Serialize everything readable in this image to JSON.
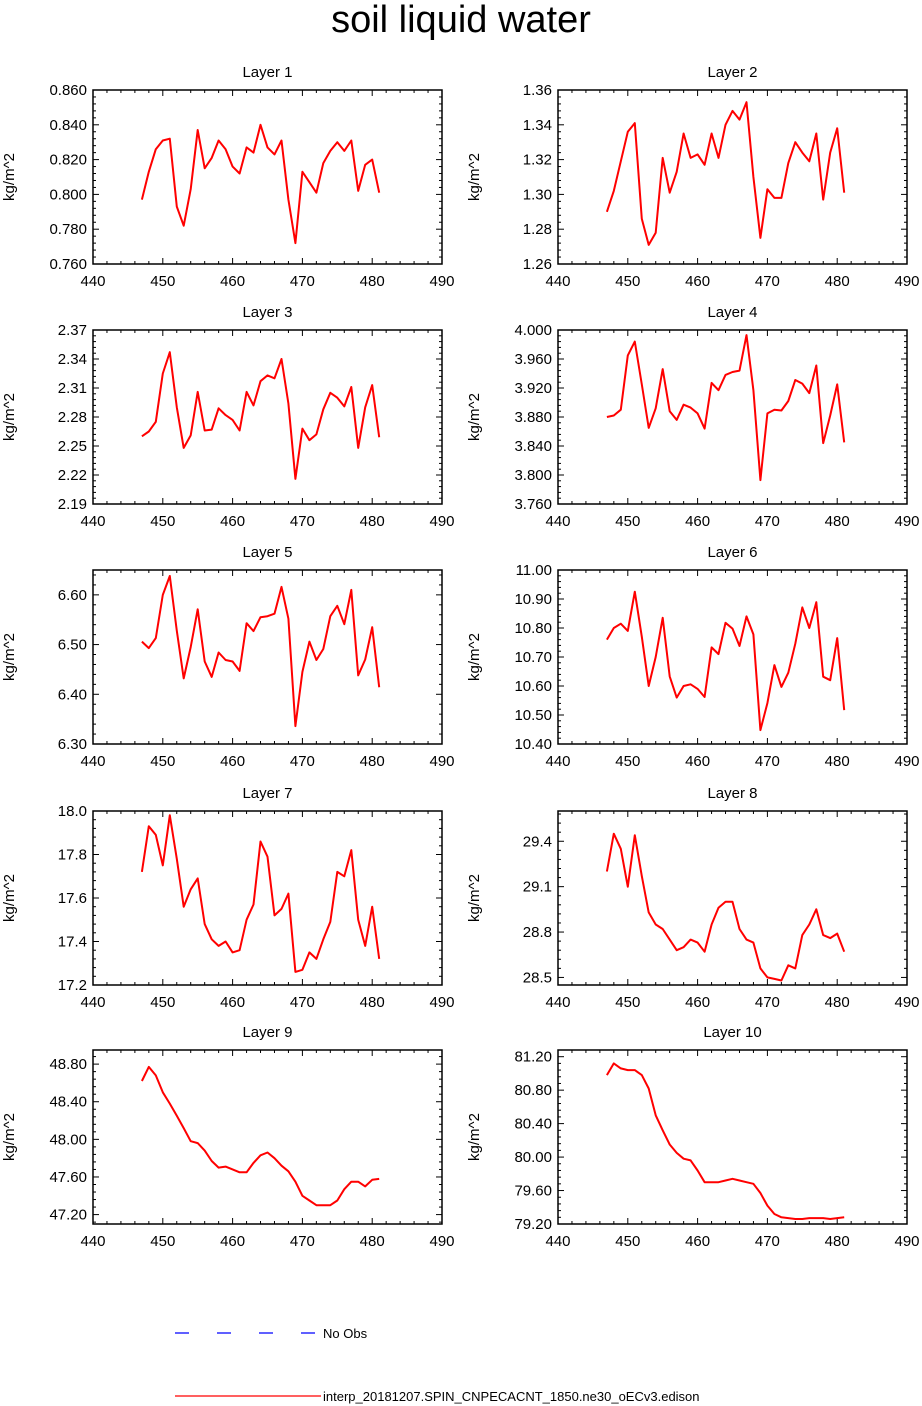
{
  "title": "soil liquid water",
  "legend": {
    "obs_label": "No Obs",
    "obs_color": "#0000ff",
    "model_label": "interp_20181207.SPIN_CNPECACNT_1850.ne30_oECv3.edison",
    "model_color": "#ff0000"
  },
  "chart_data": [
    {
      "type": "line",
      "title": "Layer 1",
      "ylabel": "kg/m^2",
      "xlim": [
        440,
        490
      ],
      "xticks": [
        "440",
        "450",
        "460",
        "470",
        "480",
        "490"
      ],
      "ylim": [
        0.76,
        0.86
      ],
      "yticks": [
        "0.760",
        "0.780",
        "0.800",
        "0.820",
        "0.840",
        "0.860"
      ],
      "x": [
        447,
        448,
        449,
        450,
        451,
        452,
        453,
        454,
        455,
        456,
        457,
        458,
        459,
        460,
        461,
        462,
        463,
        464,
        465,
        466,
        467,
        468,
        469,
        470,
        471,
        472,
        473,
        474,
        475,
        476,
        477,
        478,
        479,
        480,
        481
      ],
      "series": [
        {
          "name": "interp_20181207.SPIN_CNPECACNT_1850.ne30_oECv3.edison",
          "values": [
            0.797,
            0.813,
            0.826,
            0.831,
            0.832,
            0.793,
            0.782,
            0.803,
            0.837,
            0.815,
            0.821,
            0.831,
            0.826,
            0.816,
            0.812,
            0.827,
            0.824,
            0.84,
            0.827,
            0.823,
            0.831,
            0.797,
            0.772,
            0.813,
            0.807,
            0.801,
            0.818,
            0.825,
            0.83,
            0.825,
            0.831,
            0.802,
            0.817,
            0.82,
            0.801
          ]
        }
      ]
    },
    {
      "type": "line",
      "title": "Layer 2",
      "ylabel": "kg/m^2",
      "xlim": [
        440,
        490
      ],
      "xticks": [
        "440",
        "450",
        "460",
        "470",
        "480",
        "490"
      ],
      "ylim": [
        1.26,
        1.36
      ],
      "yticks": [
        "1.26",
        "1.28",
        "1.30",
        "1.32",
        "1.34",
        "1.36"
      ],
      "x": [
        447,
        448,
        449,
        450,
        451,
        452,
        453,
        454,
        455,
        456,
        457,
        458,
        459,
        460,
        461,
        462,
        463,
        464,
        465,
        466,
        467,
        468,
        469,
        470,
        471,
        472,
        473,
        474,
        475,
        476,
        477,
        478,
        479,
        480,
        481
      ],
      "series": [
        {
          "name": "interp_20181207.SPIN_CNPECACNT_1850.ne30_oECv3.edison",
          "values": [
            1.29,
            1.302,
            1.319,
            1.336,
            1.341,
            1.286,
            1.271,
            1.278,
            1.321,
            1.301,
            1.313,
            1.335,
            1.321,
            1.323,
            1.317,
            1.335,
            1.321,
            1.34,
            1.348,
            1.343,
            1.353,
            1.31,
            1.275,
            1.303,
            1.298,
            1.298,
            1.318,
            1.33,
            1.324,
            1.319,
            1.335,
            1.297,
            1.324,
            1.338,
            1.301
          ]
        }
      ]
    },
    {
      "type": "line",
      "title": "Layer 3",
      "ylabel": "kg/m^2",
      "xlim": [
        440,
        490
      ],
      "xticks": [
        "440",
        "450",
        "460",
        "470",
        "480",
        "490"
      ],
      "ylim": [
        2.19,
        2.37
      ],
      "yticks": [
        "2.19",
        "2.22",
        "2.25",
        "2.28",
        "2.31",
        "2.34",
        "2.37"
      ],
      "x": [
        447,
        448,
        449,
        450,
        451,
        452,
        453,
        454,
        455,
        456,
        457,
        458,
        459,
        460,
        461,
        462,
        463,
        464,
        465,
        466,
        467,
        468,
        469,
        470,
        471,
        472,
        473,
        474,
        475,
        476,
        477,
        478,
        479,
        480,
        481
      ],
      "series": [
        {
          "name": "interp_20181207.SPIN_CNPECACNT_1850.ne30_oECv3.edison",
          "values": [
            2.26,
            2.265,
            2.275,
            2.325,
            2.347,
            2.29,
            2.248,
            2.261,
            2.306,
            2.266,
            2.267,
            2.289,
            2.282,
            2.277,
            2.266,
            2.306,
            2.292,
            2.317,
            2.323,
            2.32,
            2.34,
            2.294,
            2.216,
            2.268,
            2.256,
            2.262,
            2.288,
            2.305,
            2.3,
            2.291,
            2.311,
            2.248,
            2.29,
            2.313,
            2.259
          ]
        }
      ]
    },
    {
      "type": "line",
      "title": "Layer 4",
      "ylabel": "kg/m^2",
      "xlim": [
        440,
        490
      ],
      "xticks": [
        "440",
        "450",
        "460",
        "470",
        "480",
        "490"
      ],
      "ylim": [
        3.76,
        4.0
      ],
      "yticks": [
        "3.760",
        "3.800",
        "3.840",
        "3.880",
        "3.920",
        "3.960",
        "4.000"
      ],
      "x": [
        447,
        448,
        449,
        450,
        451,
        452,
        453,
        454,
        455,
        456,
        457,
        458,
        459,
        460,
        461,
        462,
        463,
        464,
        465,
        466,
        467,
        468,
        469,
        470,
        471,
        472,
        473,
        474,
        475,
        476,
        477,
        478,
        479,
        480,
        481
      ],
      "series": [
        {
          "name": "interp_20181207.SPIN_CNPECACNT_1850.ne30_oECv3.edison",
          "values": [
            3.88,
            3.882,
            3.89,
            3.965,
            3.984,
            3.925,
            3.865,
            3.892,
            3.946,
            3.888,
            3.876,
            3.897,
            3.893,
            3.885,
            3.864,
            3.927,
            3.917,
            3.938,
            3.942,
            3.944,
            3.993,
            3.917,
            3.793,
            3.885,
            3.89,
            3.889,
            3.902,
            3.931,
            3.926,
            3.913,
            3.951,
            3.844,
            3.882,
            3.925,
            3.845
          ]
        }
      ]
    },
    {
      "type": "line",
      "title": "Layer 5",
      "ylabel": "kg/m^2",
      "xlim": [
        440,
        490
      ],
      "xticks": [
        "440",
        "450",
        "460",
        "470",
        "480",
        "490"
      ],
      "ylim": [
        6.3,
        6.65
      ],
      "yticks": [
        "6.30",
        "6.40",
        "6.50",
        "6.60"
      ],
      "x": [
        447,
        448,
        449,
        450,
        451,
        452,
        453,
        454,
        455,
        456,
        457,
        458,
        459,
        460,
        461,
        462,
        463,
        464,
        465,
        466,
        467,
        468,
        469,
        470,
        471,
        472,
        473,
        474,
        475,
        476,
        477,
        478,
        479,
        480,
        481
      ],
      "series": [
        {
          "name": "interp_20181207.SPIN_CNPECACNT_1850.ne30_oECv3.edison",
          "values": [
            6.506,
            6.493,
            6.513,
            6.6,
            6.638,
            6.528,
            6.432,
            6.495,
            6.571,
            6.466,
            6.435,
            6.484,
            6.469,
            6.466,
            6.447,
            6.543,
            6.527,
            6.555,
            6.557,
            6.562,
            6.616,
            6.552,
            6.336,
            6.445,
            6.506,
            6.469,
            6.491,
            6.557,
            6.578,
            6.541,
            6.61,
            6.438,
            6.47,
            6.535,
            6.414
          ]
        }
      ]
    },
    {
      "type": "line",
      "title": "Layer 6",
      "ylabel": "kg/m^2",
      "xlim": [
        440,
        490
      ],
      "xticks": [
        "440",
        "450",
        "460",
        "470",
        "480",
        "490"
      ],
      "ylim": [
        10.4,
        11.0
      ],
      "yticks": [
        "10.40",
        "10.50",
        "10.60",
        "10.70",
        "10.80",
        "10.90",
        "11.00"
      ],
      "x": [
        447,
        448,
        449,
        450,
        451,
        452,
        453,
        454,
        455,
        456,
        457,
        458,
        459,
        460,
        461,
        462,
        463,
        464,
        465,
        466,
        467,
        468,
        469,
        470,
        471,
        472,
        473,
        474,
        475,
        476,
        477,
        478,
        479,
        480,
        481
      ],
      "series": [
        {
          "name": "interp_20181207.SPIN_CNPECACNT_1850.ne30_oECv3.edison",
          "values": [
            10.76,
            10.8,
            10.815,
            10.79,
            10.925,
            10.77,
            10.6,
            10.7,
            10.835,
            10.633,
            10.56,
            10.6,
            10.606,
            10.59,
            10.562,
            10.733,
            10.71,
            10.818,
            10.798,
            10.738,
            10.84,
            10.778,
            10.448,
            10.541,
            10.672,
            10.597,
            10.646,
            10.746,
            10.871,
            10.8,
            10.889,
            10.632,
            10.62,
            10.765,
            10.517
          ]
        }
      ]
    },
    {
      "type": "line",
      "title": "Layer 7",
      "ylabel": "kg/m^2",
      "xlim": [
        440,
        490
      ],
      "xticks": [
        "440",
        "450",
        "460",
        "470",
        "480",
        "490"
      ],
      "ylim": [
        17.2,
        18.0
      ],
      "yticks": [
        "17.2",
        "17.4",
        "17.6",
        "17.8",
        "18.0"
      ],
      "x": [
        447,
        448,
        449,
        450,
        451,
        452,
        453,
        454,
        455,
        456,
        457,
        458,
        459,
        460,
        461,
        462,
        463,
        464,
        465,
        466,
        467,
        468,
        469,
        470,
        471,
        472,
        473,
        474,
        475,
        476,
        477,
        478,
        479,
        480,
        481
      ],
      "series": [
        {
          "name": "interp_20181207.SPIN_CNPECACNT_1850.ne30_oECv3.edison",
          "values": [
            17.72,
            17.93,
            17.89,
            17.75,
            17.98,
            17.78,
            17.56,
            17.64,
            17.69,
            17.48,
            17.41,
            17.38,
            17.4,
            17.35,
            17.36,
            17.5,
            17.57,
            17.86,
            17.79,
            17.52,
            17.55,
            17.62,
            17.26,
            17.27,
            17.35,
            17.32,
            17.41,
            17.49,
            17.72,
            17.7,
            17.82,
            17.5,
            17.38,
            17.56,
            17.32
          ]
        }
      ]
    },
    {
      "type": "line",
      "title": "Layer 8",
      "ylabel": "kg/m^2",
      "xlim": [
        440,
        490
      ],
      "xticks": [
        "440",
        "450",
        "460",
        "470",
        "480",
        "490"
      ],
      "ylim": [
        28.45,
        29.6
      ],
      "yticks": [
        "28.5",
        "28.8",
        "29.1",
        "29.4"
      ],
      "x": [
        447,
        448,
        449,
        450,
        451,
        452,
        453,
        454,
        455,
        456,
        457,
        458,
        459,
        460,
        461,
        462,
        463,
        464,
        465,
        466,
        467,
        468,
        469,
        470,
        471,
        472,
        473,
        474,
        475,
        476,
        477,
        478,
        479,
        480,
        481
      ],
      "series": [
        {
          "name": "interp_20181207.SPIN_CNPECACNT_1850.ne30_oECv3.edison",
          "values": [
            29.2,
            29.45,
            29.35,
            29.1,
            29.44,
            29.17,
            28.93,
            28.85,
            28.82,
            28.75,
            28.68,
            28.7,
            28.75,
            28.73,
            28.67,
            28.85,
            28.96,
            29.0,
            29.0,
            28.82,
            28.75,
            28.73,
            28.56,
            28.5,
            28.49,
            28.48,
            28.58,
            28.56,
            28.78,
            28.85,
            28.95,
            28.78,
            28.76,
            28.79,
            28.67
          ]
        }
      ]
    },
    {
      "type": "line",
      "title": "Layer 9",
      "ylabel": "kg/m^2",
      "xlim": [
        440,
        490
      ],
      "xticks": [
        "440",
        "450",
        "460",
        "470",
        "480",
        "490"
      ],
      "ylim": [
        47.1,
        48.95
      ],
      "yticks": [
        "47.20",
        "47.60",
        "48.00",
        "48.40",
        "48.80"
      ],
      "x": [
        447,
        448,
        449,
        450,
        451,
        452,
        453,
        454,
        455,
        456,
        457,
        458,
        459,
        460,
        461,
        462,
        463,
        464,
        465,
        466,
        467,
        468,
        469,
        470,
        471,
        472,
        473,
        474,
        475,
        476,
        477,
        478,
        479,
        480,
        481
      ],
      "series": [
        {
          "name": "interp_20181207.SPIN_CNPECACNT_1850.ne30_oECv3.edison",
          "values": [
            48.62,
            48.77,
            48.68,
            48.5,
            48.38,
            48.25,
            48.12,
            47.98,
            47.96,
            47.88,
            47.77,
            47.7,
            47.71,
            47.68,
            47.65,
            47.65,
            47.75,
            47.83,
            47.86,
            47.8,
            47.72,
            47.66,
            47.55,
            47.4,
            47.35,
            47.3,
            47.3,
            47.3,
            47.35,
            47.47,
            47.55,
            47.55,
            47.5,
            47.57,
            47.58
          ]
        }
      ]
    },
    {
      "type": "line",
      "title": "Layer 10",
      "ylabel": "kg/m^2",
      "xlim": [
        440,
        490
      ],
      "xticks": [
        "440",
        "450",
        "460",
        "470",
        "480",
        "490"
      ],
      "ylim": [
        79.2,
        81.28
      ],
      "yticks": [
        "79.20",
        "79.60",
        "80.00",
        "80.40",
        "80.80",
        "81.20"
      ],
      "x": [
        447,
        448,
        449,
        450,
        451,
        452,
        453,
        454,
        455,
        456,
        457,
        458,
        459,
        460,
        461,
        462,
        463,
        464,
        465,
        466,
        467,
        468,
        469,
        470,
        471,
        472,
        473,
        474,
        475,
        476,
        477,
        478,
        479,
        480,
        481
      ],
      "series": [
        {
          "name": "interp_20181207.SPIN_CNPECACNT_1850.ne30_oECv3.edison",
          "values": [
            80.98,
            81.12,
            81.06,
            81.04,
            81.04,
            80.98,
            80.82,
            80.5,
            80.32,
            80.15,
            80.05,
            79.98,
            79.96,
            79.84,
            79.7,
            79.7,
            79.7,
            79.72,
            79.74,
            79.72,
            79.7,
            79.68,
            79.57,
            79.42,
            79.32,
            79.28,
            79.27,
            79.26,
            79.26,
            79.27,
            79.27,
            79.27,
            79.26,
            79.27,
            79.28
          ]
        }
      ]
    }
  ]
}
